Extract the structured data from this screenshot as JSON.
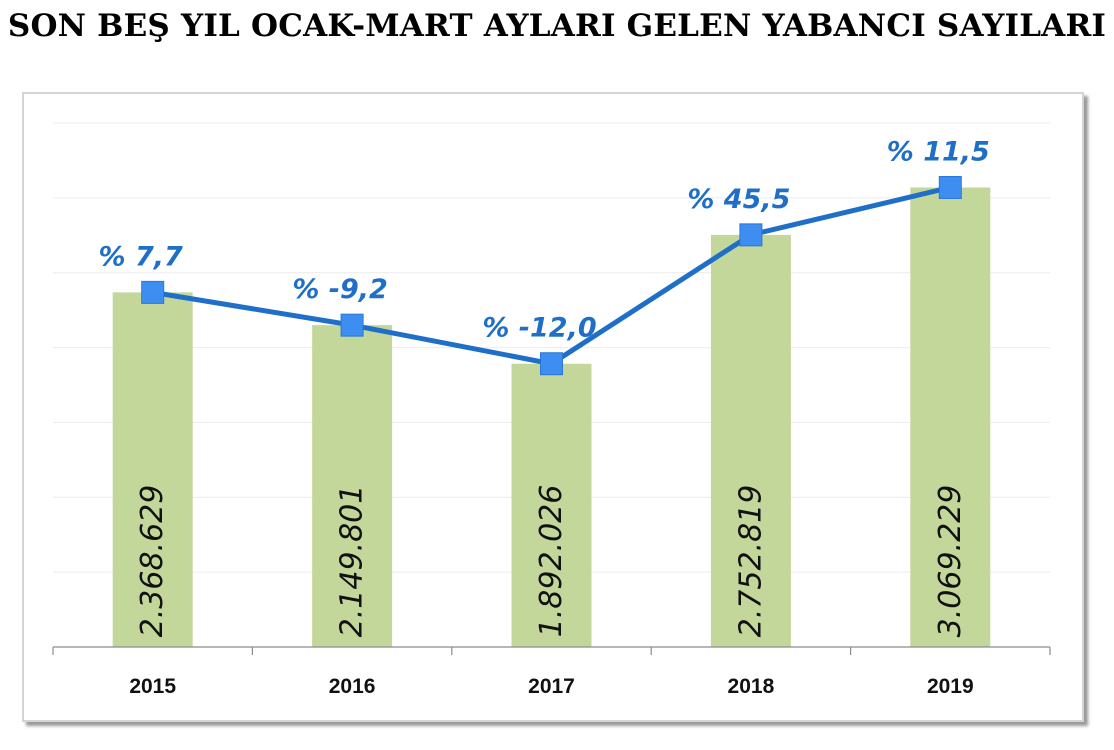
{
  "title": "SON BEŞ YIL OCAK-MART AYLARI GELEN YABANCI SAYILARI",
  "colors": {
    "bar": "#c4d79b",
    "line": "#1f6fc8",
    "marker": "#3d8ef0",
    "pct_text": "#1f6fc8",
    "grid": "#ececec"
  },
  "chart_data": {
    "type": "bar",
    "categories": [
      "2015",
      "2016",
      "2017",
      "2018",
      "2019"
    ],
    "values": [
      2368629,
      2149801,
      1892026,
      2752819,
      3069229
    ],
    "value_labels": [
      "2.368.629",
      "2.149.801",
      "1.892.026",
      "2.752.819",
      "3.069.229"
    ],
    "line_series": {
      "type": "line",
      "values": [
        7.7,
        -9.2,
        -12.0,
        45.5,
        11.5
      ],
      "labels": [
        "% 7,7",
        "% -9,2",
        "% -12,0",
        "% 45,5",
        "% 11,5"
      ]
    },
    "ylim": [
      0,
      3500000
    ],
    "grid": true,
    "legend": false
  }
}
